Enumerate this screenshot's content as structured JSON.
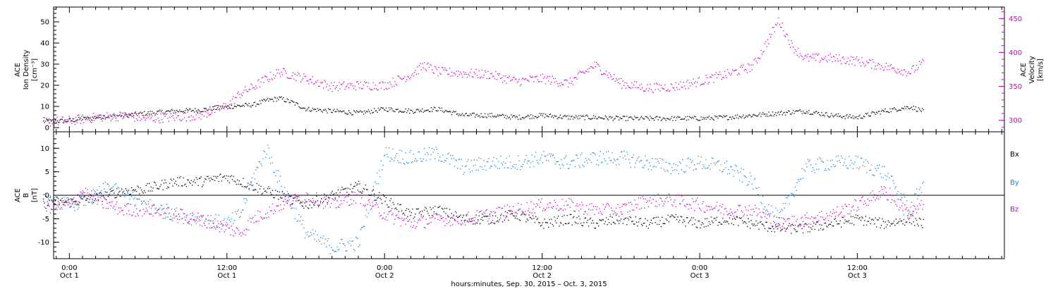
{
  "colors": {
    "black": "#000000",
    "magenta": "#cc00cc",
    "blue": "#1f86d8"
  },
  "chart_data": [
    {
      "type": "scatter",
      "panel": "top",
      "left_axis": {
        "label_lines": [
          "ACE",
          "Ion Density",
          "[cm⁻³]"
        ],
        "ylim": [
          -2,
          57
        ],
        "ticks": [
          0,
          10,
          20,
          30,
          40,
          50
        ],
        "tick_labels": [
          "0",
          "10",
          "20",
          "30",
          "40",
          "50"
        ]
      },
      "right_axis": {
        "label_lines": [
          "ACE",
          "Velocity",
          "[km/s]"
        ],
        "ylim": [
          283,
          467
        ],
        "ticks": [
          300,
          350,
          400,
          450
        ],
        "tick_labels": [
          "300",
          "350",
          "400",
          "450"
        ],
        "color": "#cc00cc"
      },
      "series": [
        {
          "name": "",
          "axis": "left",
          "color": "#000000",
          "x_hours": [
            -2,
            0,
            2,
            4,
            6,
            8,
            10,
            12,
            14,
            15,
            16,
            17,
            18,
            20,
            22,
            24,
            26,
            28,
            30,
            32,
            34,
            36,
            38,
            40,
            42,
            44,
            46,
            48,
            50,
            52,
            54,
            56,
            58,
            60,
            62,
            64,
            65
          ],
          "values": [
            3,
            3.5,
            5,
            6,
            7,
            8,
            8.5,
            10,
            11,
            13,
            14,
            12,
            9,
            8,
            7,
            9,
            8,
            9,
            6,
            6,
            5,
            6,
            5,
            5,
            4.5,
            4.5,
            4.5,
            4.5,
            5,
            6,
            7,
            8,
            6,
            5,
            8,
            10,
            8
          ]
        },
        {
          "name": "",
          "axis": "right",
          "color": "#cc00cc",
          "x_hours": [
            -2,
            0,
            2,
            4,
            6,
            8,
            10,
            12,
            13,
            14,
            15,
            16,
            18,
            20,
            22,
            24,
            26,
            27,
            28,
            30,
            32,
            34,
            36,
            38,
            40,
            42,
            44,
            46,
            48,
            50,
            52,
            53,
            54,
            55,
            56,
            58,
            60,
            62,
            64,
            65
          ],
          "values": [
            298,
            300,
            305,
            307,
            303,
            305,
            308,
            322,
            340,
            350,
            362,
            372,
            362,
            350,
            352,
            352,
            368,
            382,
            372,
            370,
            368,
            358,
            362,
            355,
            382,
            355,
            348,
            350,
            358,
            368,
            380,
            412,
            448,
            410,
            392,
            392,
            388,
            380,
            372,
            385
          ]
        }
      ]
    },
    {
      "type": "scatter",
      "panel": "bottom",
      "left_axis": {
        "label_lines": [
          "ACE",
          "B",
          "[nT]"
        ],
        "ylim": [
          -13.5,
          13.5
        ],
        "ticks": [
          -10,
          -5,
          0,
          5,
          10
        ],
        "tick_labels": [
          "-10",
          "-5",
          "0",
          "5",
          "10"
        ]
      },
      "zero_line": true,
      "legend": {
        "position": "right",
        "entries": [
          "Bx",
          "By",
          "Bz"
        ]
      },
      "series": [
        {
          "name": "Bx",
          "color": "#000000",
          "x_hours": [
            -2,
            0,
            2,
            4,
            6,
            8,
            10,
            12,
            14,
            16,
            18,
            20,
            22,
            24,
            26,
            28,
            30,
            32,
            34,
            36,
            38,
            40,
            42,
            44,
            46,
            48,
            50,
            52,
            54,
            56,
            58,
            60,
            62,
            64,
            65
          ],
          "values": [
            -1,
            -1.5,
            -0.5,
            1,
            1.5,
            3,
            3,
            4,
            2,
            0,
            -2,
            0,
            2,
            -1,
            -4,
            -3,
            -5,
            -5,
            -4,
            -6,
            -5,
            -6,
            -5,
            -6,
            -5,
            -6,
            -5,
            -6,
            -7,
            -7,
            -6,
            -5,
            -6,
            -5,
            -6
          ]
        },
        {
          "name": "By",
          "color": "#1f86d8",
          "x_hours": [
            -2,
            0,
            2,
            3,
            4,
            6,
            8,
            10,
            12,
            13,
            14,
            15,
            16,
            18,
            20,
            22,
            24,
            26,
            28,
            30,
            32,
            34,
            36,
            38,
            40,
            42,
            44,
            46,
            48,
            50,
            52,
            53,
            54,
            56,
            58,
            60,
            62,
            64,
            65
          ],
          "values": [
            -1,
            -2,
            0,
            2,
            0,
            -2,
            -4,
            -5,
            -6,
            -4,
            4,
            10,
            3,
            -8,
            -11,
            -10,
            9,
            8,
            9,
            6,
            7,
            7,
            8,
            7,
            8,
            8,
            7,
            6,
            7,
            6,
            3,
            -2,
            -5,
            6,
            7,
            7,
            5,
            -3,
            3
          ]
        },
        {
          "name": "Bz",
          "color": "#cc00cc",
          "x_hours": [
            -2,
            0,
            1,
            2,
            4,
            6,
            8,
            10,
            12,
            13,
            14,
            16,
            18,
            20,
            22,
            24,
            26,
            28,
            30,
            32,
            34,
            36,
            38,
            40,
            42,
            44,
            46,
            48,
            50,
            52,
            54,
            56,
            58,
            60,
            62,
            64,
            65
          ],
          "values": [
            -2.5,
            -2,
            1,
            -1,
            -3,
            -3,
            -4,
            -5,
            -7,
            -8,
            -5,
            -2,
            0,
            -2,
            0,
            -4,
            -6,
            -5,
            -5,
            -4,
            -3,
            -2,
            -2,
            -3,
            -3,
            -1,
            -1,
            -2,
            -3,
            -3,
            -6,
            -5,
            -4,
            -2,
            1,
            -4,
            -2
          ]
        }
      ]
    }
  ],
  "time_axis": {
    "ticks": [
      {
        "hour": 0,
        "time": "0:00",
        "date": "Oct 1"
      },
      {
        "hour": 12,
        "time": "12:00",
        "date": "Oct 1"
      },
      {
        "hour": 24,
        "time": "0:00",
        "date": "Oct 2"
      },
      {
        "hour": 36,
        "time": "12:00",
        "date": "Oct 2"
      },
      {
        "hour": 48,
        "time": "0:00",
        "date": "Oct 3"
      },
      {
        "hour": 60,
        "time": "12:00",
        "date": "Oct 3"
      }
    ],
    "xlim_hours": [
      -1.2,
      71.2
    ],
    "caption": "hours:minutes, Sep. 30, 2015 – Oct.  3, 2015"
  }
}
